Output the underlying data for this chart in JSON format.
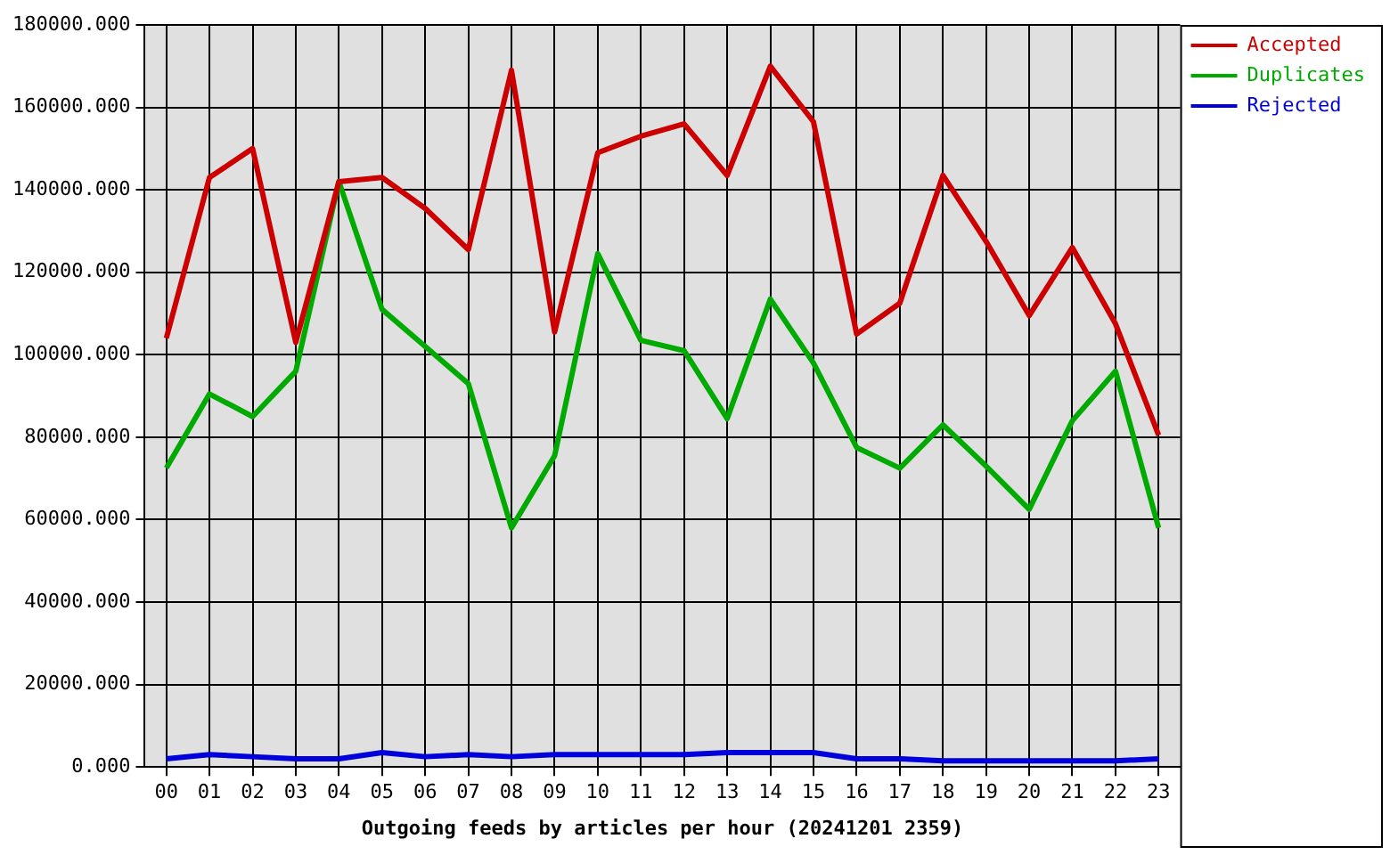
{
  "chart_data": {
    "type": "line",
    "xlabel": "Outgoing feeds by articles per hour (20241201 2359)",
    "categories": [
      "00",
      "01",
      "02",
      "03",
      "04",
      "05",
      "06",
      "07",
      "08",
      "09",
      "10",
      "11",
      "12",
      "13",
      "14",
      "15",
      "16",
      "17",
      "18",
      "19",
      "20",
      "21",
      "22",
      "23"
    ],
    "series": [
      {
        "name": "Accepted",
        "color": "#cc0000",
        "values": [
          104000,
          143000,
          150000,
          103000,
          142000,
          143000,
          135500,
          125500,
          169000,
          105500,
          149000,
          153000,
          156000,
          143500,
          170000,
          156500,
          105000,
          112500,
          143500,
          127500,
          109500,
          126000,
          107500,
          80500
        ]
      },
      {
        "name": "Duplicates",
        "color": "#00aa00",
        "values": [
          72500,
          90500,
          85000,
          96000,
          142000,
          111000,
          102000,
          93000,
          58000,
          75500,
          124500,
          103500,
          101000,
          84500,
          113500,
          98000,
          77500,
          72500,
          83000,
          73000,
          62500,
          84000,
          96000,
          58000
        ]
      },
      {
        "name": "Rejected",
        "color": "#0000dd",
        "values": [
          2000,
          3000,
          2500,
          2000,
          2000,
          3500,
          2500,
          3000,
          2500,
          3000,
          3000,
          3000,
          3000,
          3500,
          3500,
          3500,
          2000,
          2000,
          1500,
          1500,
          1500,
          1500,
          1500,
          2000
        ]
      }
    ],
    "ylim": [
      0,
      180000
    ],
    "yticks": [
      {
        "value": 0,
        "label": "0.000"
      },
      {
        "value": 20000,
        "label": "20000.000"
      },
      {
        "value": 40000,
        "label": "40000.000"
      },
      {
        "value": 60000,
        "label": "60000.000"
      },
      {
        "value": 80000,
        "label": "80000.000"
      },
      {
        "value": 100000,
        "label": "100000.000"
      },
      {
        "value": 120000,
        "label": "120000.000"
      },
      {
        "value": 140000,
        "label": "140000.000"
      },
      {
        "value": 160000,
        "label": "160000.000"
      },
      {
        "value": 180000,
        "label": "180000.000"
      }
    ],
    "grid": true,
    "legend": "top right",
    "marker": "none",
    "line_style": "solid"
  }
}
